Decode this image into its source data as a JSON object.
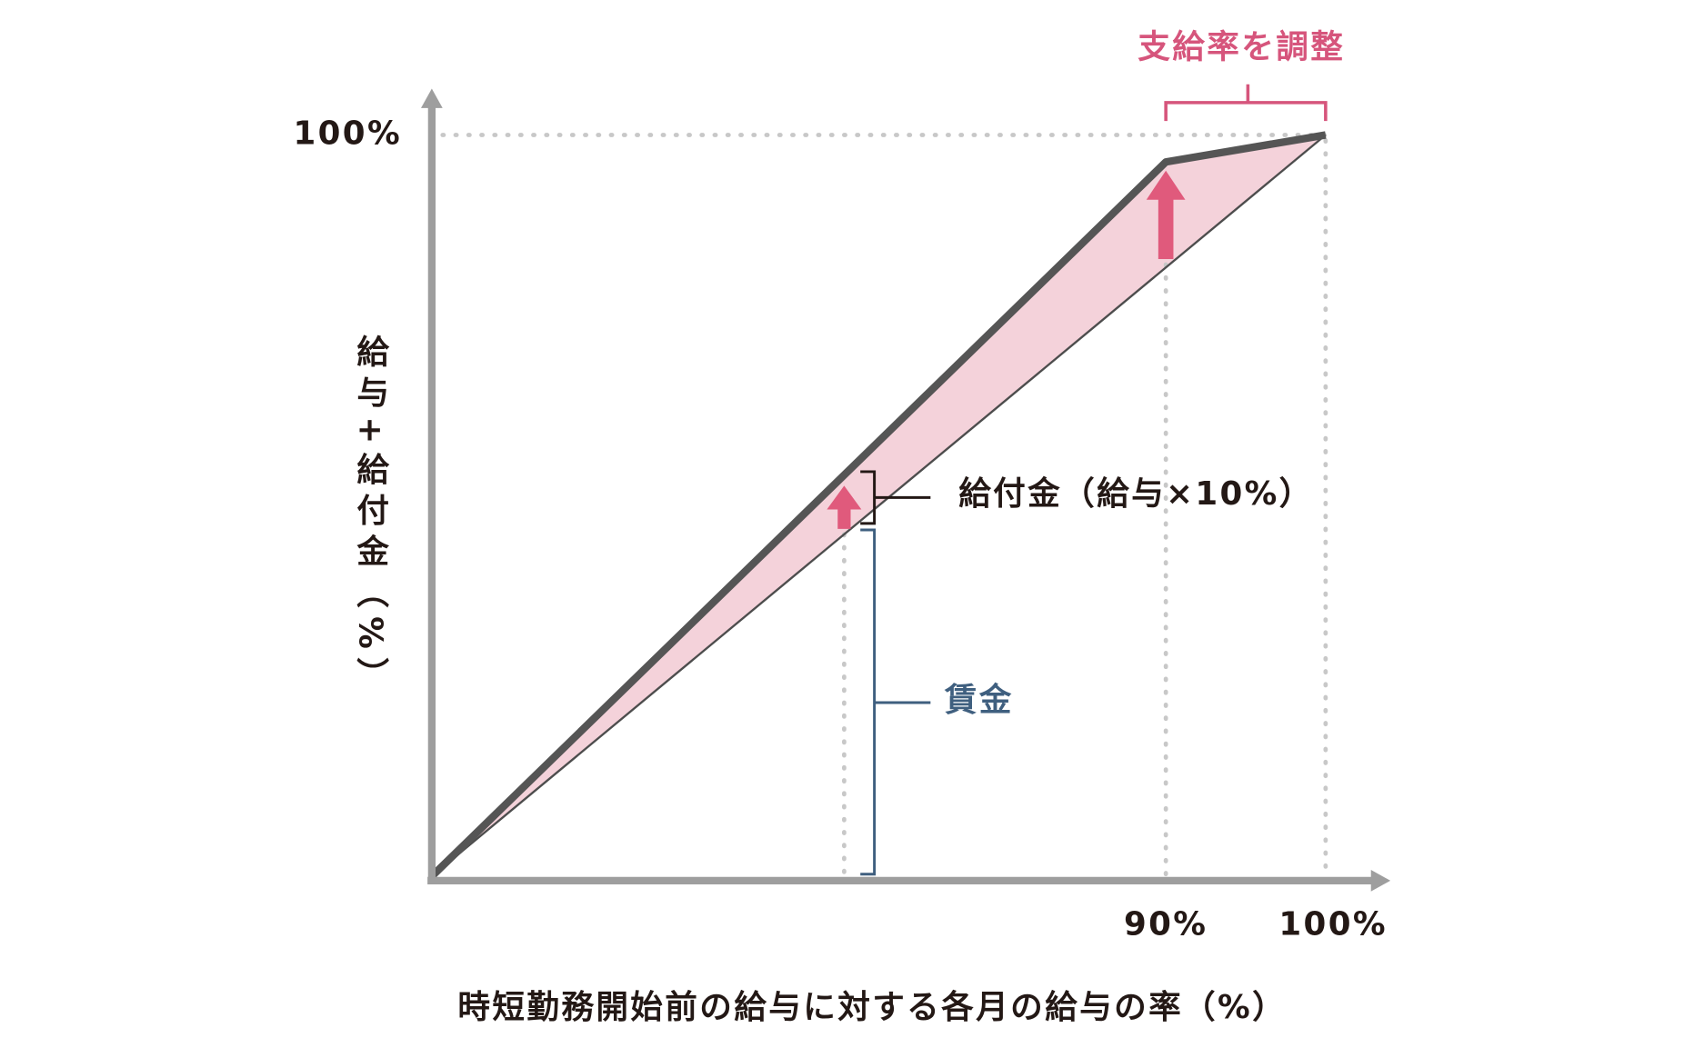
{
  "annotation_top": "支給率を調整",
  "y_axis_label": "給与+給付金（%）",
  "y_tick": "100%",
  "x_ticks": [
    "90%",
    "100%"
  ],
  "x_axis_label": "時短勤務開始前の給与に対する各月の給与の率（%）",
  "benefit_label": "給付金（給与×10%）",
  "wage_label": "賃金"
}
